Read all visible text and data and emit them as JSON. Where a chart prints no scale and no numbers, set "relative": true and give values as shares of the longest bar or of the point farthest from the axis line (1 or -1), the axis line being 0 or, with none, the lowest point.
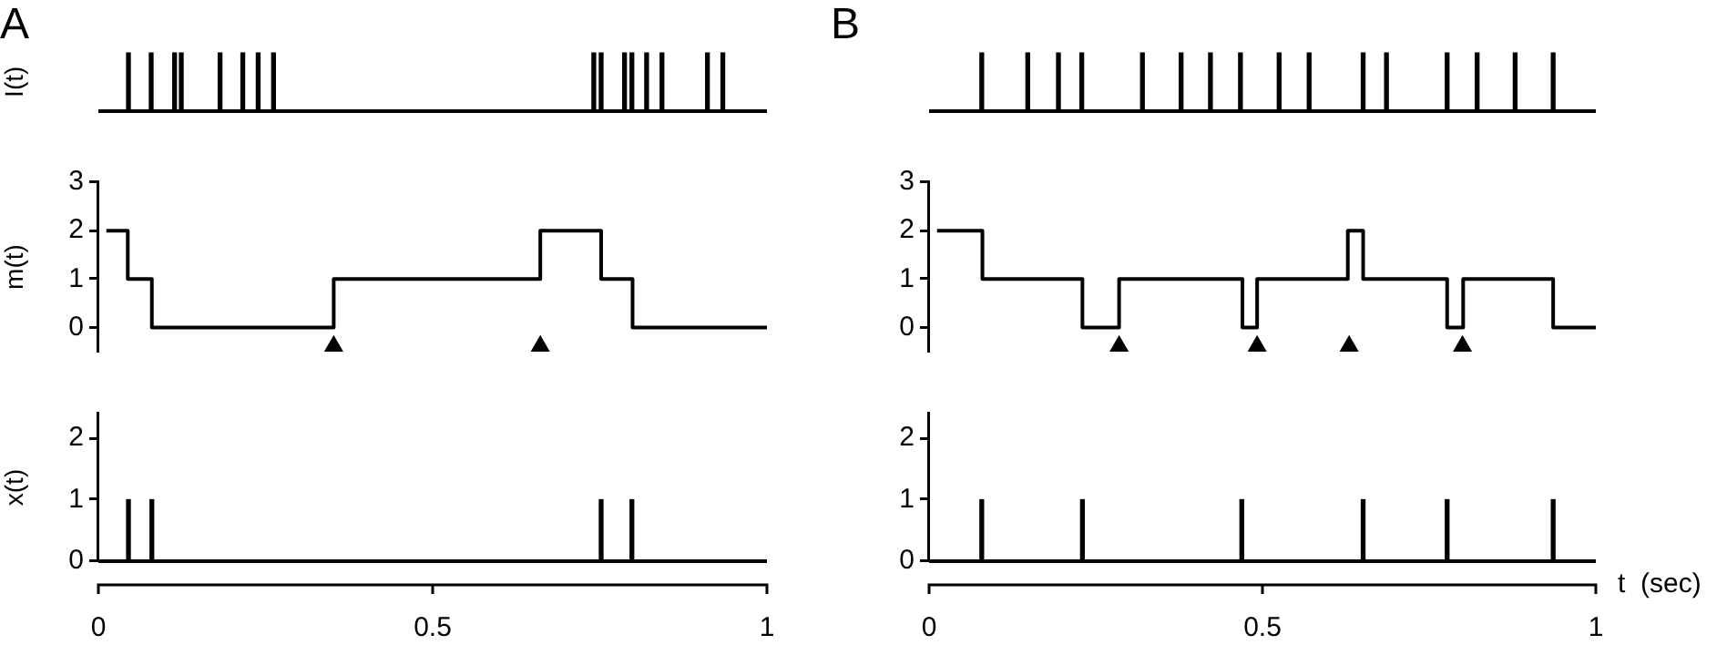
{
  "chart_data": [
    {
      "type": "bar",
      "title": "A",
      "ylabel": "I(t)",
      "relative": true,
      "tick_labels": false,
      "xlim": [
        0,
        1
      ],
      "color": "#000000",
      "x": [
        0.045,
        0.079,
        0.114,
        0.124,
        0.182,
        0.216,
        0.239,
        0.262,
        0.741,
        0.752,
        0.787,
        0.798,
        0.82,
        0.843,
        0.911,
        0.934
      ],
      "values": [
        1,
        1,
        1,
        1,
        1,
        1,
        1,
        1,
        1,
        1,
        1,
        1,
        1,
        1,
        1,
        1
      ]
    },
    {
      "type": "bar",
      "title": "B",
      "relative": true,
      "tick_labels": false,
      "xlim": [
        0,
        1
      ],
      "color": "#000000",
      "x": [
        0.079,
        0.148,
        0.194,
        0.229,
        0.32,
        0.378,
        0.422,
        0.467,
        0.525,
        0.57,
        0.651,
        0.686,
        0.777,
        0.822,
        0.879,
        0.936
      ],
      "values": [
        1,
        1,
        1,
        1,
        1,
        1,
        1,
        1,
        1,
        1,
        1,
        1,
        1,
        1,
        1,
        1
      ]
    },
    {
      "type": "step",
      "ylabel": "m(t)",
      "tick_labels": "y",
      "xlim": [
        0,
        1
      ],
      "ylim": [
        -0.5,
        3
      ],
      "yticks": [
        0,
        1,
        2,
        3
      ],
      "series": [
        {
          "type": "step",
          "color": "#000000",
          "x": [
            0.012,
            0.044,
            0.08,
            0.352,
            0.661,
            0.752,
            0.799,
            1.0
          ],
          "values": [
            2,
            1,
            0,
            1,
            2,
            1,
            0,
            0
          ]
        },
        {
          "type": "scatter",
          "color": "#000000",
          "marker": "triangle",
          "x": [
            0.352,
            0.661
          ],
          "values": [
            -0.42,
            -0.42
          ]
        }
      ]
    },
    {
      "type": "step",
      "tick_labels": "y",
      "xlim": [
        0,
        1
      ],
      "ylim": [
        -0.5,
        3
      ],
      "yticks": [
        0,
        1,
        2,
        3
      ],
      "series": [
        {
          "type": "step",
          "color": "#000000",
          "x": [
            0.012,
            0.08,
            0.23,
            0.285,
            0.47,
            0.492,
            0.628,
            0.651,
            0.777,
            0.801,
            0.936,
            1.0
          ],
          "values": [
            2,
            1,
            0,
            1,
            0,
            1,
            2,
            1,
            0,
            1,
            0,
            0
          ]
        },
        {
          "type": "scatter",
          "color": "#000000",
          "marker": "triangle",
          "x": [
            0.285,
            0.492,
            0.63,
            0.8
          ],
          "values": [
            -0.42,
            -0.42,
            -0.42,
            -0.42
          ]
        }
      ]
    },
    {
      "type": "bar",
      "ylabel": "x(t)",
      "xlim": [
        0,
        1
      ],
      "xticks": [
        0,
        0.5,
        1
      ],
      "ylim": [
        0,
        2.4
      ],
      "yticks": [
        0,
        1,
        2
      ],
      "color": "#000000",
      "x": [
        0.045,
        0.08,
        0.752,
        0.798
      ],
      "values": [
        1,
        1,
        1,
        1
      ]
    },
    {
      "type": "bar",
      "xlabel": "t  (sec)",
      "xlim": [
        0,
        1
      ],
      "xticks": [
        0,
        0.5,
        1
      ],
      "ylim": [
        0,
        2.4
      ],
      "yticks": [
        0,
        1,
        2
      ],
      "color": "#000000",
      "x": [
        0.079,
        0.23,
        0.469,
        0.651,
        0.777,
        0.936
      ],
      "values": [
        1,
        1,
        1,
        1,
        1,
        1
      ]
    }
  ]
}
